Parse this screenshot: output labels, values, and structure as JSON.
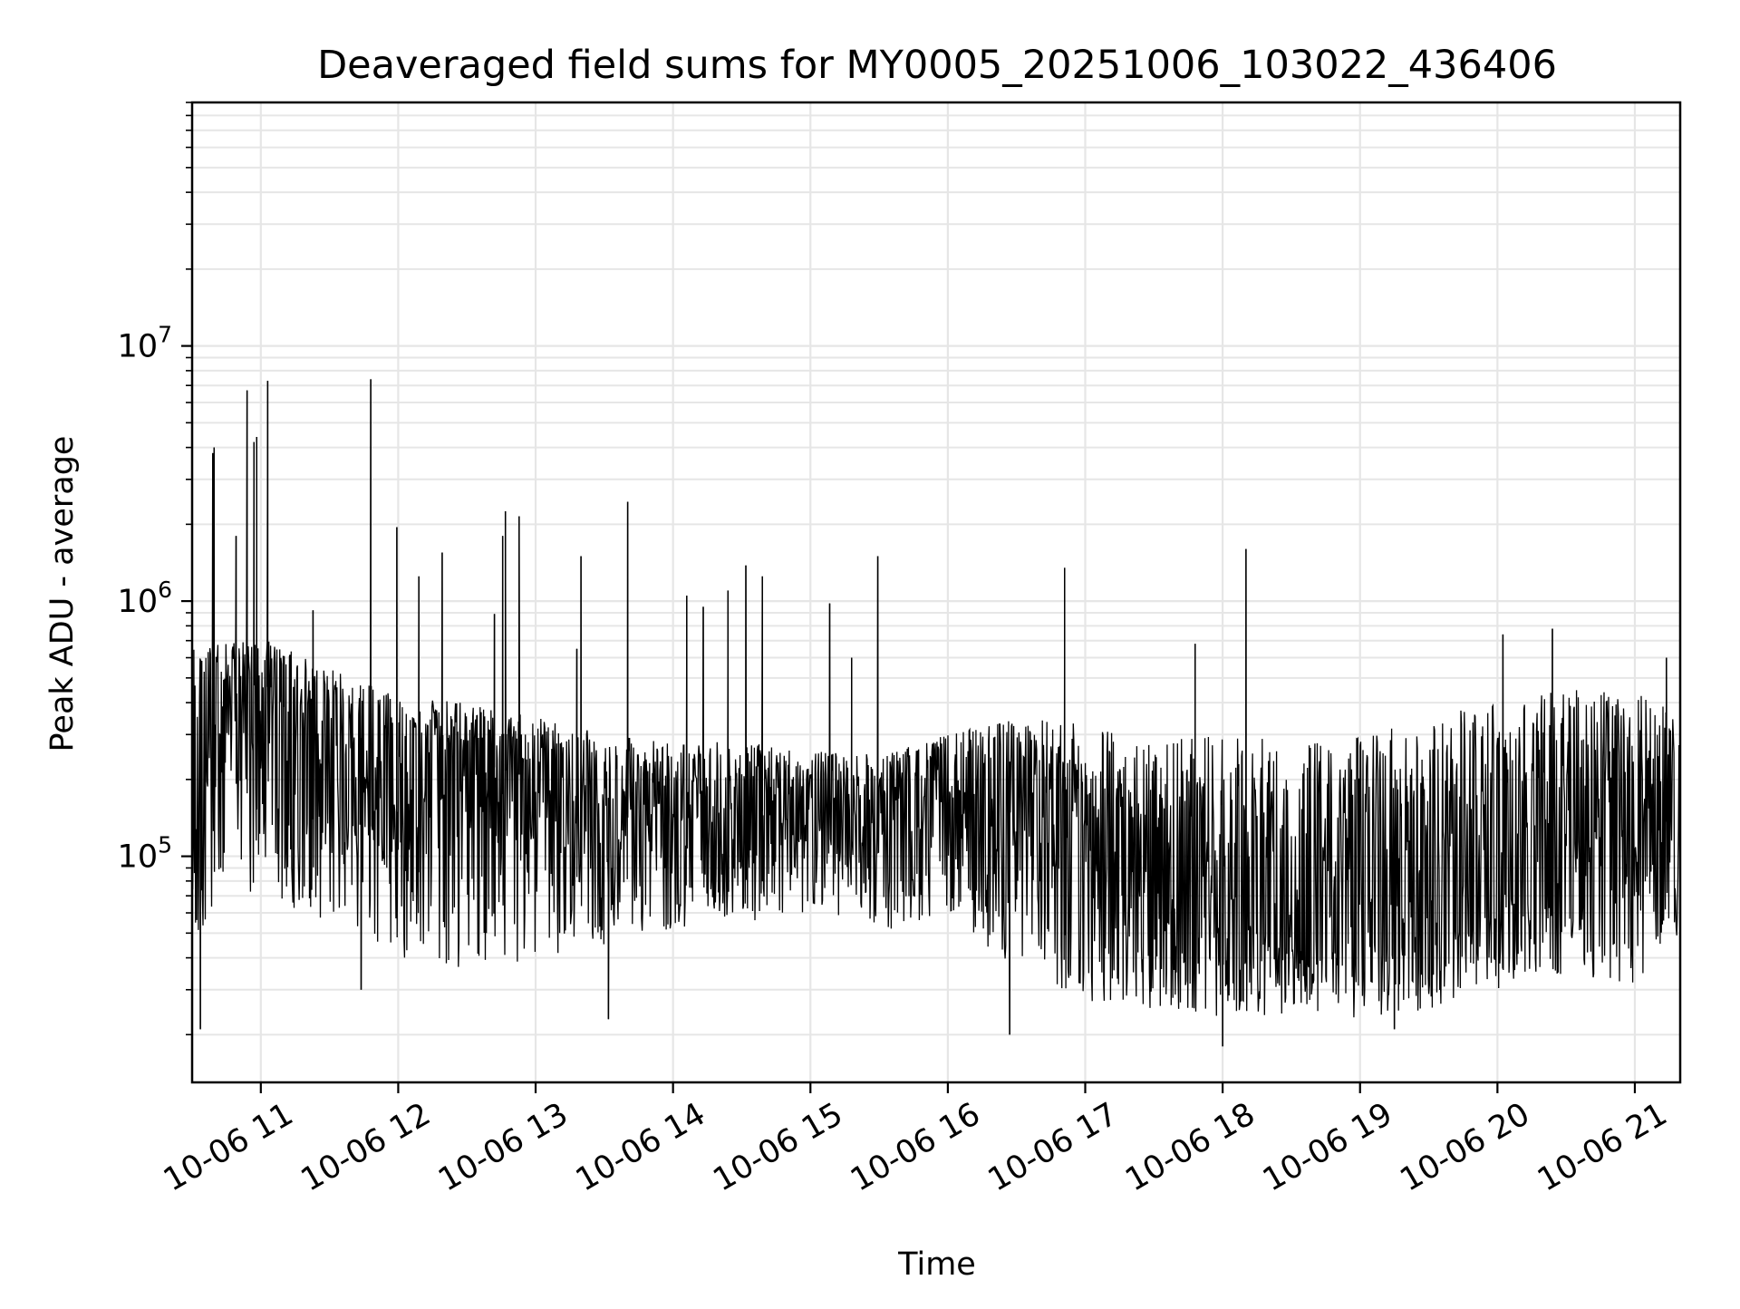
{
  "chart_data": {
    "type": "line",
    "title": "Deaveraged field sums for MY0005_20251006_103022_436406",
    "xlabel": "Time",
    "ylabel": "Peak ADU - average",
    "yscale": "log",
    "xlim_hours": [
      10.5,
      21.33
    ],
    "ylim": [
      13000,
      90000000
    ],
    "grid": true,
    "x_tick_labels": [
      "10-06 11",
      "10-06 12",
      "10-06 13",
      "10-06 14",
      "10-06 15",
      "10-06 16",
      "10-06 17",
      "10-06 18",
      "10-06 19",
      "10-06 20",
      "10-06 21"
    ],
    "x_tick_hours": [
      11,
      12,
      13,
      14,
      15,
      16,
      17,
      18,
      19,
      20,
      21
    ],
    "y_ticks": [
      {
        "value": 100000,
        "base": "10",
        "exp": "5"
      },
      {
        "value": 1000000,
        "base": "10",
        "exp": "6"
      },
      {
        "value": 10000000,
        "base": "10",
        "exp": "7"
      }
    ],
    "envelope": [
      {
        "t": 10.5,
        "mid": 250000,
        "hi": 650000,
        "lo": 35000
      },
      {
        "t": 10.75,
        "mid": 420000,
        "hi": 700000,
        "lo": 60000
      },
      {
        "t": 11.0,
        "mid": 480000,
        "hi": 720000,
        "lo": 70000
      },
      {
        "t": 11.5,
        "mid": 320000,
        "hi": 550000,
        "lo": 55000
      },
      {
        "t": 12.0,
        "mid": 260000,
        "hi": 420000,
        "lo": 40000
      },
      {
        "t": 12.5,
        "mid": 240000,
        "hi": 400000,
        "lo": 35000
      },
      {
        "t": 13.0,
        "mid": 200000,
        "hi": 350000,
        "lo": 40000
      },
      {
        "t": 13.5,
        "mid": 170000,
        "hi": 300000,
        "lo": 45000
      },
      {
        "t": 14.0,
        "mid": 160000,
        "hi": 280000,
        "lo": 50000
      },
      {
        "t": 14.5,
        "mid": 150000,
        "hi": 280000,
        "lo": 55000
      },
      {
        "t": 15.0,
        "mid": 150000,
        "hi": 260000,
        "lo": 60000
      },
      {
        "t": 15.5,
        "mid": 140000,
        "hi": 250000,
        "lo": 50000
      },
      {
        "t": 16.0,
        "mid": 180000,
        "hi": 300000,
        "lo": 60000
      },
      {
        "t": 16.5,
        "mid": 200000,
        "hi": 350000,
        "lo": 35000
      },
      {
        "t": 17.0,
        "mid": 120000,
        "hi": 330000,
        "lo": 27000
      },
      {
        "t": 17.5,
        "mid": 90000,
        "hi": 300000,
        "lo": 25000
      },
      {
        "t": 18.0,
        "mid": 60000,
        "hi": 300000,
        "lo": 23000
      },
      {
        "t": 18.5,
        "mid": 50000,
        "hi": 280000,
        "lo": 24000
      },
      {
        "t": 19.0,
        "mid": 45000,
        "hi": 300000,
        "lo": 23000
      },
      {
        "t": 19.5,
        "mid": 50000,
        "hi": 350000,
        "lo": 25000
      },
      {
        "t": 20.0,
        "mid": 60000,
        "hi": 400000,
        "lo": 30000
      },
      {
        "t": 20.5,
        "mid": 90000,
        "hi": 450000,
        "lo": 35000
      },
      {
        "t": 21.0,
        "mid": 110000,
        "hi": 450000,
        "lo": 30000
      },
      {
        "t": 21.33,
        "mid": 150000,
        "hi": 400000,
        "lo": 50000
      }
    ],
    "spikes": [
      {
        "t": 10.66,
        "v": 4000000
      },
      {
        "t": 10.65,
        "v": 3800000
      },
      {
        "t": 10.9,
        "v": 6700000
      },
      {
        "t": 10.95,
        "v": 4200000
      },
      {
        "t": 10.97,
        "v": 4400000
      },
      {
        "t": 11.05,
        "v": 7300000
      },
      {
        "t": 10.82,
        "v": 1800000
      },
      {
        "t": 11.38,
        "v": 920000
      },
      {
        "t": 11.8,
        "v": 7400000
      },
      {
        "t": 11.99,
        "v": 1950000
      },
      {
        "t": 12.15,
        "v": 1250000
      },
      {
        "t": 12.32,
        "v": 1550000
      },
      {
        "t": 12.7,
        "v": 890000
      },
      {
        "t": 12.76,
        "v": 1800000
      },
      {
        "t": 12.78,
        "v": 2250000
      },
      {
        "t": 12.88,
        "v": 2150000
      },
      {
        "t": 13.33,
        "v": 1500000
      },
      {
        "t": 13.3,
        "v": 650000
      },
      {
        "t": 13.67,
        "v": 2450000
      },
      {
        "t": 14.1,
        "v": 1050000
      },
      {
        "t": 14.22,
        "v": 950000
      },
      {
        "t": 14.4,
        "v": 1100000
      },
      {
        "t": 14.53,
        "v": 1380000
      },
      {
        "t": 14.65,
        "v": 1250000
      },
      {
        "t": 15.14,
        "v": 980000
      },
      {
        "t": 15.3,
        "v": 600000
      },
      {
        "t": 15.49,
        "v": 1500000
      },
      {
        "t": 16.85,
        "v": 1350000
      },
      {
        "t": 17.8,
        "v": 680000
      },
      {
        "t": 18.17,
        "v": 1600000
      },
      {
        "t": 20.04,
        "v": 740000
      },
      {
        "t": 20.4,
        "v": 780000
      },
      {
        "t": 21.23,
        "v": 600000
      }
    ],
    "dips": [
      {
        "t": 10.56,
        "v": 21000
      },
      {
        "t": 11.73,
        "v": 30000
      },
      {
        "t": 13.53,
        "v": 23000
      },
      {
        "t": 16.45,
        "v": 20000
      },
      {
        "t": 18.0,
        "v": 18000
      },
      {
        "t": 19.25,
        "v": 21000
      }
    ]
  }
}
